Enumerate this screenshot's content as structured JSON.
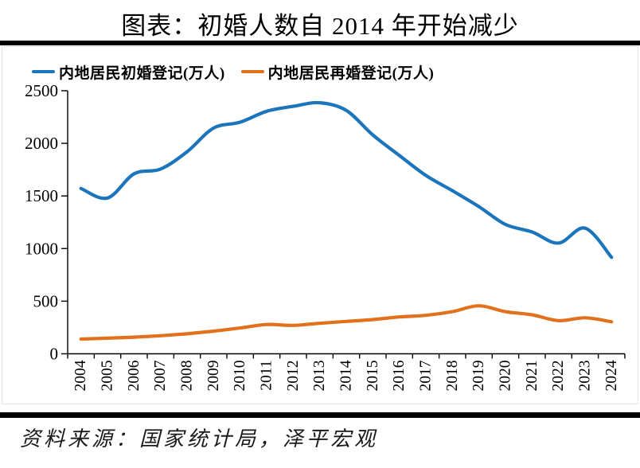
{
  "title": "图表：初婚人数自 2014 年开始减少",
  "source_note": "资料来源：国家统计局，泽平宏观",
  "legend": {
    "first_marriage_label": "内地居民初婚登记(万人)",
    "remarriage_label": "内地居民再婚登记(万人)"
  },
  "colors": {
    "first_marriage": "#1B75BC",
    "remarriage": "#E2711C",
    "axis": "#000000",
    "divider": "#000000"
  },
  "chart_data": {
    "type": "line",
    "title": "图表：初婚人数自 2014 年开始减少",
    "x": [
      "2004",
      "2005",
      "2006",
      "2007",
      "2008",
      "2009",
      "2010",
      "2011",
      "2012",
      "2013",
      "2014",
      "2015",
      "2016",
      "2017",
      "2018",
      "2019",
      "2020",
      "2021",
      "2022",
      "2023",
      "2024"
    ],
    "series": [
      {
        "name": "内地居民初婚登记(万人)",
        "color": "#1B75BC",
        "values": [
          1571,
          1480,
          1710,
          1756,
          1920,
          2145,
          2201,
          2305,
          2352,
          2386,
          2313,
          2080,
          1885,
          1695,
          1550,
          1399,
          1229,
          1158,
          1052,
          1194,
          917
        ]
      },
      {
        "name": "内地居民再婚登记(万人)",
        "color": "#E2711C",
        "values": [
          140,
          148,
          158,
          172,
          190,
          215,
          245,
          278,
          270,
          290,
          308,
          325,
          350,
          365,
          400,
          456,
          400,
          371,
          315,
          342,
          304
        ]
      }
    ],
    "xlabel": "",
    "ylabel": "",
    "ylim": [
      0,
      2500
    ],
    "yticks": [
      0,
      500,
      1000,
      1500,
      2000,
      2500
    ],
    "grid": false,
    "legend_position": "top",
    "x_label_rotation": -90,
    "line_style": "smooth"
  }
}
